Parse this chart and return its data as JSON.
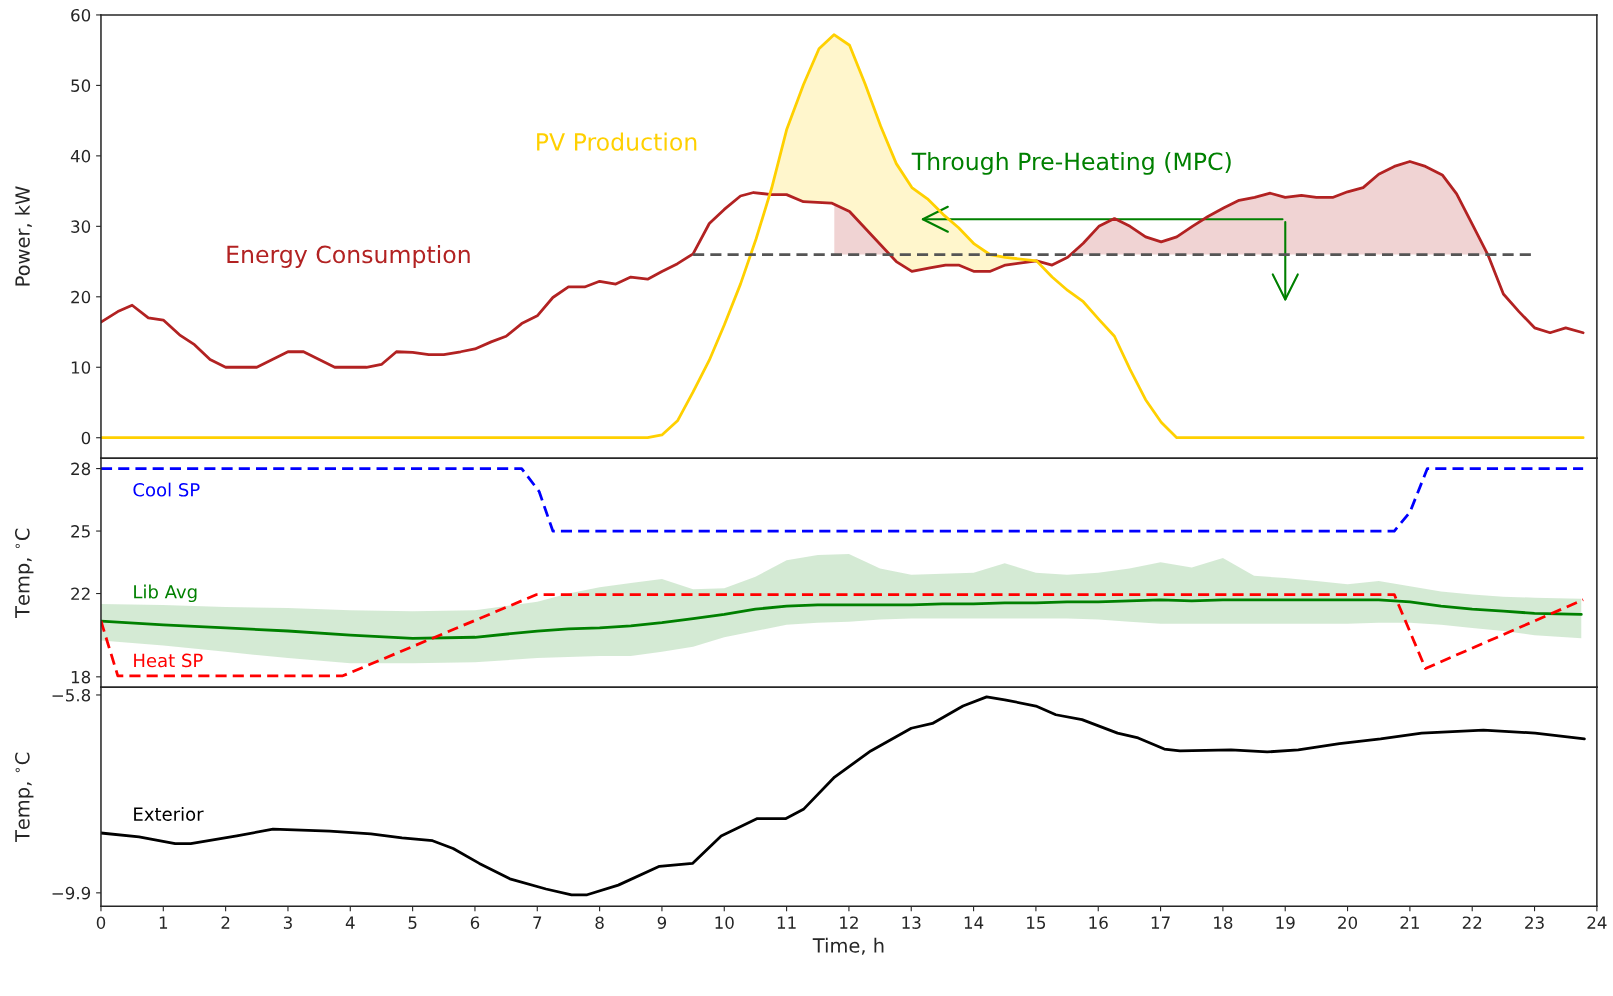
{
  "chart_data": [
    {
      "type": "line",
      "ylabel": "Power, kW",
      "xlim": [
        0,
        24
      ],
      "ylim": [
        -2.9,
        60
      ],
      "yticks": [
        0,
        10,
        20,
        30,
        40,
        50,
        60
      ],
      "tick_labels": "y",
      "grid": false,
      "legend": false,
      "series": [
        {
          "name": "Energy Consumption",
          "color": "#b22222",
          "line_style": "solid",
          "x": [
            0,
            0.27,
            0.5,
            0.76,
            1.0,
            1.26,
            1.5,
            1.75,
            2.0,
            2.5,
            2.75,
            3.0,
            3.25,
            3.5,
            3.75,
            4.26,
            4.5,
            4.74,
            5.0,
            5.26,
            5.5,
            5.77,
            6.0,
            6.26,
            6.5,
            6.75,
            7.0,
            7.25,
            7.5,
            7.76,
            8.0,
            8.26,
            8.5,
            8.77,
            9.0,
            9.25,
            9.5,
            9.76,
            10.0,
            10.26,
            10.47,
            10.76,
            11.0,
            11.27,
            11.72,
            12.01,
            12.76,
            13.01,
            13.3,
            13.55,
            13.76,
            14.01,
            14.26,
            14.51,
            15.01,
            15.26,
            15.51,
            15.76,
            16.01,
            16.26,
            16.51,
            16.76,
            17.01,
            17.26,
            17.51,
            17.76,
            18.01,
            18.26,
            18.51,
            18.76,
            19.0,
            19.26,
            19.5,
            19.76,
            20.0,
            20.25,
            20.5,
            20.75,
            21.0,
            21.25,
            21.52,
            21.75,
            22.0,
            22.25,
            22.5,
            22.75,
            23.0,
            23.25,
            23.5,
            23.78
          ],
          "values": [
            16.4,
            17.9,
            18.8,
            17.0,
            16.7,
            14.6,
            13.2,
            11.1,
            10.0,
            10.0,
            11.1,
            12.2,
            12.2,
            11.1,
            10.0,
            10.0,
            10.4,
            12.2,
            12.1,
            11.8,
            11.8,
            12.2,
            12.6,
            13.6,
            14.4,
            16.2,
            17.3,
            19.9,
            21.4,
            21.4,
            22.2,
            21.8,
            22.8,
            22.5,
            23.6,
            24.7,
            26.1,
            30.4,
            32.4,
            34.3,
            34.8,
            34.5,
            34.5,
            33.5,
            33.3,
            32.1,
            25.0,
            23.6,
            24.1,
            24.5,
            24.5,
            23.6,
            23.6,
            24.5,
            25.1,
            24.5,
            25.6,
            27.6,
            30.0,
            31.1,
            30.0,
            28.5,
            27.8,
            28.5,
            30.0,
            31.4,
            32.6,
            33.7,
            34.1,
            34.7,
            34.1,
            34.4,
            34.1,
            34.1,
            34.9,
            35.5,
            37.4,
            38.5,
            39.2,
            38.5,
            37.3,
            34.6,
            30.3,
            26.0,
            20.4,
            17.9,
            15.6,
            14.9,
            15.6,
            14.9
          ]
        },
        {
          "name": "PV Production",
          "color": "#ffd000",
          "line_style": "solid",
          "x": [
            0,
            8.77,
            9.0,
            9.25,
            9.5,
            9.76,
            10.0,
            10.26,
            10.51,
            10.76,
            11.0,
            11.27,
            11.52,
            11.76,
            12.01,
            12.26,
            12.51,
            12.76,
            13.01,
            13.26,
            13.51,
            13.76,
            14.01,
            14.26,
            14.51,
            15.01,
            15.26,
            15.51,
            15.76,
            16.01,
            16.26,
            16.51,
            16.76,
            17.01,
            17.26,
            23.78
          ],
          "values": [
            0,
            0,
            0.4,
            2.4,
            6.5,
            11.0,
            16.0,
            21.8,
            28.2,
            35.4,
            43.7,
            50.1,
            55.2,
            57.2,
            55.7,
            50.2,
            44.2,
            38.9,
            35.5,
            33.9,
            31.7,
            29.8,
            27.5,
            26.0,
            25.6,
            25.1,
            22.8,
            20.9,
            19.3,
            16.8,
            14.4,
            9.7,
            5.4,
            2.2,
            0,
            0
          ]
        },
        {
          "color": "#555555",
          "line_style": "dashed",
          "x": [
            9.5,
            23.0
          ],
          "values": [
            26,
            26
          ]
        }
      ],
      "annotations": [
        "Through Pre-Heating (MPC)"
      ]
    },
    {
      "type": "line",
      "ylabel": "Temp, $^{∘}$C",
      "xlim": [
        0,
        24
      ],
      "ylim": [
        17.5,
        28.5
      ],
      "yticks": [
        18,
        22,
        25,
        28
      ],
      "tick_labels": "y",
      "grid": false,
      "legend": false,
      "series": [
        {
          "name": "Cool SP",
          "color": "#0000ff",
          "line_style": "dashed",
          "x": [
            0,
            6.75,
            7.03,
            7.25,
            20.75,
            21.0,
            21.28,
            23.78
          ],
          "values": [
            28,
            28,
            26.9,
            25,
            25,
            25.9,
            28,
            28
          ]
        },
        {
          "name": "Lib Avg",
          "color": "#008000",
          "line_style": "solid",
          "x": [
            0,
            1,
            2,
            3,
            4,
            5,
            6,
            7,
            7.5,
            8,
            8.5,
            9,
            9.5,
            10,
            10.5,
            11,
            11.5,
            12,
            12.5,
            13,
            13.5,
            14,
            14.5,
            15,
            15.5,
            16,
            16.5,
            17,
            17.5,
            18,
            18.5,
            19,
            19.5,
            20,
            20.5,
            21,
            21.5,
            22,
            22.5,
            23,
            23.75
          ],
          "values": [
            20.68,
            20.5,
            20.35,
            20.2,
            20.0,
            19.85,
            19.9,
            20.2,
            20.3,
            20.35,
            20.45,
            20.6,
            20.8,
            21.0,
            21.25,
            21.4,
            21.45,
            21.45,
            21.45,
            21.45,
            21.5,
            21.5,
            21.55,
            21.55,
            21.6,
            21.6,
            21.65,
            21.7,
            21.65,
            21.7,
            21.7,
            21.7,
            21.7,
            21.7,
            21.7,
            21.6,
            21.4,
            21.25,
            21.15,
            21.05,
            21.0
          ],
          "lower": [
            19.75,
            19.5,
            19.2,
            18.9,
            18.65,
            18.65,
            18.7,
            18.9,
            18.95,
            19.0,
            19.0,
            19.2,
            19.45,
            19.9,
            20.2,
            20.5,
            20.6,
            20.65,
            20.75,
            20.8,
            20.8,
            20.8,
            20.8,
            20.8,
            20.8,
            20.75,
            20.65,
            20.55,
            20.55,
            20.55,
            20.55,
            20.55,
            20.55,
            20.55,
            20.6,
            20.6,
            20.5,
            20.35,
            20.2,
            20.0,
            19.85
          ],
          "upper": [
            21.5,
            21.45,
            21.35,
            21.3,
            21.2,
            21.15,
            21.2,
            21.6,
            22.0,
            22.3,
            22.5,
            22.7,
            22.2,
            22.25,
            22.8,
            23.6,
            23.85,
            23.9,
            23.2,
            22.9,
            22.95,
            23.0,
            23.45,
            23.0,
            22.9,
            23.0,
            23.2,
            23.5,
            23.25,
            23.7,
            22.85,
            22.75,
            22.6,
            22.45,
            22.6,
            22.35,
            22.1,
            21.95,
            21.85,
            21.8,
            21.75
          ]
        },
        {
          "name": "Heat SP",
          "color": "#ff0000",
          "line_style": "dashed",
          "x": [
            0,
            0.27,
            3.88,
            6.99,
            20.75,
            21.25,
            23.78
          ],
          "values": [
            20.68,
            18.05,
            18.05,
            21.95,
            21.95,
            18.4,
            21.7
          ]
        }
      ]
    },
    {
      "type": "line",
      "ylabel": "Temp, $^{∘}$C",
      "xlabel": "Time, h",
      "xlim": [
        0,
        24
      ],
      "xticks": [
        0,
        1,
        2,
        3,
        4,
        5,
        6,
        7,
        8,
        9,
        10,
        11,
        12,
        13,
        14,
        15,
        16,
        17,
        18,
        19,
        20,
        21,
        22,
        23,
        24
      ],
      "ylim": [
        -10.18,
        -5.64
      ],
      "yticks": [
        {
          "value": -5.8,
          "label": "−5.8"
        },
        {
          "value": -9.9,
          "label": "−9.9"
        }
      ],
      "grid": false,
      "legend": false,
      "series": [
        {
          "name": "Exterior",
          "color": "#000000",
          "line_style": "solid",
          "x": [
            0,
            0.61,
            1.19,
            1.44,
            2.18,
            2.76,
            3.67,
            4.33,
            4.83,
            5.32,
            5.65,
            6.07,
            6.56,
            7.14,
            7.55,
            7.8,
            8.3,
            8.96,
            9.49,
            9.95,
            10.53,
            10.99,
            11.27,
            11.77,
            12.35,
            13.0,
            13.34,
            13.83,
            14.21,
            14.5,
            15.0,
            15.32,
            15.74,
            16.31,
            16.64,
            17.06,
            17.31,
            18.13,
            18.71,
            19.21,
            19.87,
            20.53,
            21.19,
            22.18,
            23.01,
            23.8
          ],
          "values": [
            -8.66,
            -8.74,
            -8.88,
            -8.88,
            -8.72,
            -8.58,
            -8.62,
            -8.68,
            -8.76,
            -8.82,
            -8.98,
            -9.29,
            -9.61,
            -9.82,
            -9.94,
            -9.94,
            -9.74,
            -9.35,
            -9.29,
            -8.72,
            -8.36,
            -8.36,
            -8.17,
            -7.5,
            -6.96,
            -6.49,
            -6.39,
            -6.03,
            -5.84,
            -5.9,
            -6.03,
            -6.21,
            -6.31,
            -6.59,
            -6.69,
            -6.92,
            -6.96,
            -6.94,
            -6.98,
            -6.94,
            -6.81,
            -6.71,
            -6.59,
            -6.53,
            -6.59,
            -6.71
          ]
        }
      ]
    }
  ]
}
